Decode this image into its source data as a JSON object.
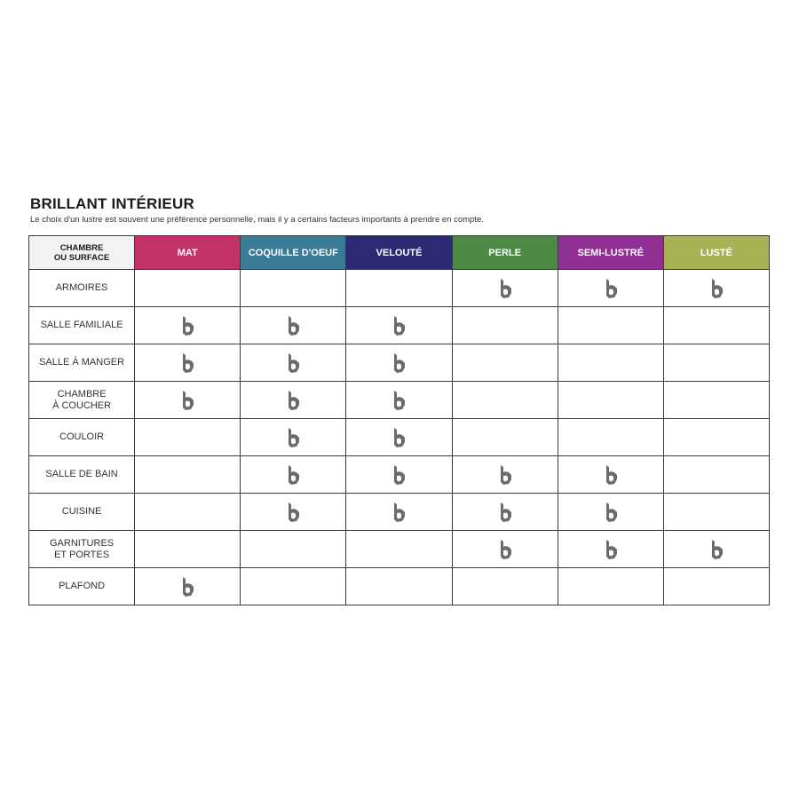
{
  "title": "BRILLANT INTÉRIEUR",
  "subtitle": "Le choix d'un lustre est souvent une préférence personnelle, mais il y a certains facteurs importants à prendre en compte.",
  "table": {
    "corner_label": "CHAMBRE\nOU SURFACE",
    "icon": "brand-b-icon",
    "icon_color": "#6b6b6b",
    "columns": [
      {
        "label": "MAT",
        "color": "#c2336a"
      },
      {
        "label": "COQUILLE D'OEUF",
        "color": "#3b7a97"
      },
      {
        "label": "VELOUTÉ",
        "color": "#2b2a72"
      },
      {
        "label": "PERLE",
        "color": "#4d8a45"
      },
      {
        "label": "SEMI-LUSTRÉ",
        "color": "#8e2f91"
      },
      {
        "label": "LUSTÉ",
        "color": "#a9b157"
      }
    ],
    "rows": [
      {
        "label": "ARMOIRES",
        "marks": [
          false,
          false,
          false,
          true,
          true,
          true
        ]
      },
      {
        "label": "SALLE FAMILIALE",
        "marks": [
          true,
          true,
          true,
          false,
          false,
          false
        ]
      },
      {
        "label": "SALLE À MANGER",
        "marks": [
          true,
          true,
          true,
          false,
          false,
          false
        ]
      },
      {
        "label": "CHAMBRE\nÀ COUCHER",
        "marks": [
          true,
          true,
          true,
          false,
          false,
          false
        ]
      },
      {
        "label": "COULOIR",
        "marks": [
          false,
          true,
          true,
          false,
          false,
          false
        ]
      },
      {
        "label": "SALLE DE BAIN",
        "marks": [
          false,
          true,
          true,
          true,
          true,
          false
        ]
      },
      {
        "label": "CUISINE",
        "marks": [
          false,
          true,
          true,
          true,
          true,
          false
        ]
      },
      {
        "label": "GARNITURES\nET PORTES",
        "marks": [
          false,
          false,
          false,
          true,
          true,
          true
        ]
      },
      {
        "label": "PLAFOND",
        "marks": [
          true,
          false,
          false,
          false,
          false,
          false
        ]
      }
    ]
  }
}
